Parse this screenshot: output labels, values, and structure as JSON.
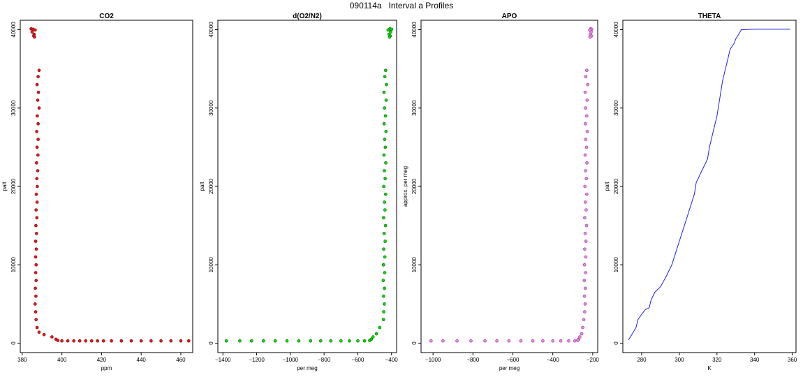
{
  "title": "090114a   Interval a Profiles",
  "chart_data": [
    {
      "type": "scatter",
      "title": "CO2",
      "xlabel": "ppm",
      "ylabel": "palt",
      "xlim": [
        379,
        466
      ],
      "ylim": [
        -1200,
        41200
      ],
      "xticks": [
        380,
        400,
        420,
        440,
        460
      ],
      "yticks": [
        0,
        10000,
        20000,
        30000,
        40000
      ],
      "color": "#e41a1c",
      "outline_color": "#7a0000",
      "series": [
        {
          "points": [
            [
              384.5,
              40100
            ],
            [
              385.5,
              40050
            ],
            [
              386.5,
              39950
            ],
            [
              385,
              39700
            ],
            [
              386,
              39400
            ],
            [
              385.8,
              39200
            ],
            [
              386.2,
              39050
            ],
            [
              388.5,
              34800
            ],
            [
              388,
              34000
            ],
            [
              387.5,
              33000
            ],
            [
              388.2,
              32000
            ],
            [
              387.8,
              31000
            ],
            [
              388.5,
              30000
            ],
            [
              387.6,
              29000
            ],
            [
              388,
              28000
            ],
            [
              387.3,
              27000
            ],
            [
              388,
              26000
            ],
            [
              387.5,
              25000
            ],
            [
              387.9,
              24000
            ],
            [
              387.2,
              23000
            ],
            [
              387.8,
              22000
            ],
            [
              387.4,
              21000
            ],
            [
              387.6,
              20000
            ],
            [
              387.1,
              19000
            ],
            [
              387.5,
              18000
            ],
            [
              387,
              17000
            ],
            [
              387.4,
              16000
            ],
            [
              386.9,
              15000
            ],
            [
              387.2,
              14000
            ],
            [
              386.8,
              13000
            ],
            [
              387.1,
              12000
            ],
            [
              386.7,
              11000
            ],
            [
              387,
              10000
            ],
            [
              386.8,
              9000
            ],
            [
              387,
              8000
            ],
            [
              386.6,
              7000
            ],
            [
              386.9,
              6000
            ],
            [
              386.5,
              5000
            ],
            [
              386.8,
              4000
            ],
            [
              387,
              3000
            ],
            [
              387.5,
              2000
            ],
            [
              388.5,
              1400
            ],
            [
              391,
              1100
            ],
            [
              395,
              800
            ],
            [
              397,
              500
            ],
            [
              398,
              350
            ],
            [
              400,
              300
            ],
            [
              403,
              300
            ],
            [
              406,
              300
            ],
            [
              409,
              300
            ],
            [
              412,
              300
            ],
            [
              415,
              300
            ],
            [
              418,
              300
            ],
            [
              421,
              300
            ],
            [
              425,
              300
            ],
            [
              430,
              300
            ],
            [
              435,
              300
            ],
            [
              440,
              300
            ],
            [
              445,
              300
            ],
            [
              450,
              300
            ],
            [
              455,
              300
            ],
            [
              460,
              300
            ],
            [
              464,
              300
            ]
          ]
        }
      ]
    },
    {
      "type": "scatter",
      "title": "d(O2/N2)",
      "xlabel": "per meg",
      "ylabel": "palt",
      "xlim": [
        -1430,
        -370
      ],
      "ylim": [
        -1200,
        41200
      ],
      "xticks": [
        -1400,
        -1200,
        -1000,
        -800,
        -600,
        -400
      ],
      "yticks": [
        0,
        10000,
        20000,
        30000,
        40000
      ],
      "color": "#00e000",
      "outline_color": "#005a00",
      "series": [
        {
          "points": [
            [
              -410,
              40100
            ],
            [
              -400,
              40050
            ],
            [
              -420,
              39950
            ],
            [
              -405,
              39700
            ],
            [
              -415,
              39400
            ],
            [
              -408,
              39200
            ],
            [
              -412,
              39050
            ],
            [
              -435,
              34800
            ],
            [
              -440,
              34000
            ],
            [
              -430,
              33000
            ],
            [
              -445,
              32000
            ],
            [
              -432,
              31000
            ],
            [
              -442,
              30000
            ],
            [
              -436,
              29000
            ],
            [
              -444,
              28000
            ],
            [
              -433,
              27000
            ],
            [
              -441,
              26000
            ],
            [
              -437,
              25000
            ],
            [
              -445,
              24000
            ],
            [
              -434,
              23000
            ],
            [
              -443,
              22000
            ],
            [
              -438,
              21000
            ],
            [
              -446,
              20000
            ],
            [
              -435,
              19000
            ],
            [
              -442,
              18000
            ],
            [
              -439,
              17000
            ],
            [
              -447,
              16000
            ],
            [
              -436,
              15000
            ],
            [
              -444,
              14000
            ],
            [
              -438,
              13000
            ],
            [
              -446,
              12000
            ],
            [
              -440,
              11000
            ],
            [
              -448,
              10000
            ],
            [
              -441,
              9000
            ],
            [
              -449,
              8000
            ],
            [
              -442,
              7000
            ],
            [
              -447,
              6000
            ],
            [
              -443,
              5000
            ],
            [
              -446,
              4000
            ],
            [
              -448,
              3000
            ],
            [
              -470,
              2000
            ],
            [
              -490,
              1200
            ],
            [
              -510,
              800
            ],
            [
              -520,
              500
            ],
            [
              -530,
              350
            ],
            [
              -560,
              300
            ],
            [
              -600,
              300
            ],
            [
              -650,
              300
            ],
            [
              -700,
              300
            ],
            [
              -760,
              300
            ],
            [
              -820,
              300
            ],
            [
              -880,
              300
            ],
            [
              -950,
              300
            ],
            [
              -1020,
              300
            ],
            [
              -1090,
              300
            ],
            [
              -1160,
              300
            ],
            [
              -1230,
              300
            ],
            [
              -1300,
              300
            ],
            [
              -1380,
              300
            ]
          ]
        }
      ]
    },
    {
      "type": "scatter",
      "title": "APO",
      "xlabel": "per meg",
      "ylabel": "approx. per meg",
      "xlim": [
        -1060,
        -175
      ],
      "ylim": [
        -1200,
        41200
      ],
      "xticks": [
        -1000,
        -800,
        -600,
        -400,
        -200
      ],
      "yticks": [
        0,
        10000,
        20000,
        30000,
        40000
      ],
      "color": "#ee82ee",
      "outline_color": "#8b3a8b",
      "series": [
        {
          "points": [
            [
              -210,
              40100
            ],
            [
              -205,
              40050
            ],
            [
              -215,
              39950
            ],
            [
              -208,
              39700
            ],
            [
              -212,
              39400
            ],
            [
              -206,
              39200
            ],
            [
              -214,
              39050
            ],
            [
              -230,
              34800
            ],
            [
              -235,
              34000
            ],
            [
              -225,
              33000
            ],
            [
              -238,
              32000
            ],
            [
              -228,
              31000
            ],
            [
              -236,
              30000
            ],
            [
              -230,
              29000
            ],
            [
              -237,
              28000
            ],
            [
              -227,
              27000
            ],
            [
              -235,
              26000
            ],
            [
              -231,
              25000
            ],
            [
              -238,
              24000
            ],
            [
              -229,
              23000
            ],
            [
              -236,
              22000
            ],
            [
              -232,
              21000
            ],
            [
              -239,
              20000
            ],
            [
              -230,
              19000
            ],
            [
              -237,
              18000
            ],
            [
              -233,
              17000
            ],
            [
              -240,
              16000
            ],
            [
              -231,
              15000
            ],
            [
              -238,
              14000
            ],
            [
              -234,
              13000
            ],
            [
              -240,
              12000
            ],
            [
              -235,
              11000
            ],
            [
              -241,
              10000
            ],
            [
              -236,
              9000
            ],
            [
              -242,
              8000
            ],
            [
              -237,
              7000
            ],
            [
              -241,
              6000
            ],
            [
              -238,
              5000
            ],
            [
              -240,
              4000
            ],
            [
              -245,
              3000
            ],
            [
              -250,
              2000
            ],
            [
              -255,
              1200
            ],
            [
              -265,
              800
            ],
            [
              -270,
              500
            ],
            [
              -275,
              350
            ],
            [
              -290,
              300
            ],
            [
              -320,
              300
            ],
            [
              -360,
              300
            ],
            [
              -400,
              300
            ],
            [
              -450,
              300
            ],
            [
              -500,
              300
            ],
            [
              -560,
              300
            ],
            [
              -620,
              300
            ],
            [
              -680,
              300
            ],
            [
              -740,
              300
            ],
            [
              -810,
              300
            ],
            [
              -880,
              300
            ],
            [
              -950,
              300
            ],
            [
              -1010,
              300
            ]
          ]
        }
      ]
    },
    {
      "type": "line",
      "title": "THETA",
      "xlabel": "K",
      "ylabel": "palt",
      "xlim": [
        270,
        362
      ],
      "ylim": [
        -1200,
        41200
      ],
      "xticks": [
        280,
        300,
        320,
        340,
        360
      ],
      "yticks": [
        0,
        10000,
        20000,
        30000,
        40000
      ],
      "color": "#1e1ee8",
      "series": [
        {
          "points": [
            [
              273,
              400
            ],
            [
              275,
              1200
            ],
            [
              277,
              2000
            ],
            [
              278,
              3000
            ],
            [
              280,
              3700
            ],
            [
              282,
              4300
            ],
            [
              284,
              4500
            ],
            [
              285,
              5500
            ],
            [
              287,
              6500
            ],
            [
              290,
              7200
            ],
            [
              293,
              8500
            ],
            [
              296,
              10000
            ],
            [
              298,
              11500
            ],
            [
              300,
              13000
            ],
            [
              302,
              14500
            ],
            [
              304,
              16000
            ],
            [
              306,
              17500
            ],
            [
              308,
              19000
            ],
            [
              309,
              20500
            ],
            [
              311,
              21500
            ],
            [
              313,
              22500
            ],
            [
              315,
              23500
            ],
            [
              316,
              25000
            ],
            [
              317,
              26000
            ],
            [
              318,
              27000
            ],
            [
              319,
              28000
            ],
            [
              320,
              29000
            ],
            [
              321,
              30500
            ],
            [
              322,
              32000
            ],
            [
              323,
              33500
            ],
            [
              324,
              34500
            ],
            [
              325,
              35500
            ],
            [
              326,
              36500
            ],
            [
              327,
              37500
            ],
            [
              329,
              38200
            ],
            [
              330,
              38800
            ],
            [
              331,
              39200
            ],
            [
              332,
              39600
            ],
            [
              333,
              40000
            ],
            [
              340,
              40050
            ],
            [
              350,
              40050
            ],
            [
              359,
              40050
            ]
          ]
        }
      ]
    }
  ]
}
